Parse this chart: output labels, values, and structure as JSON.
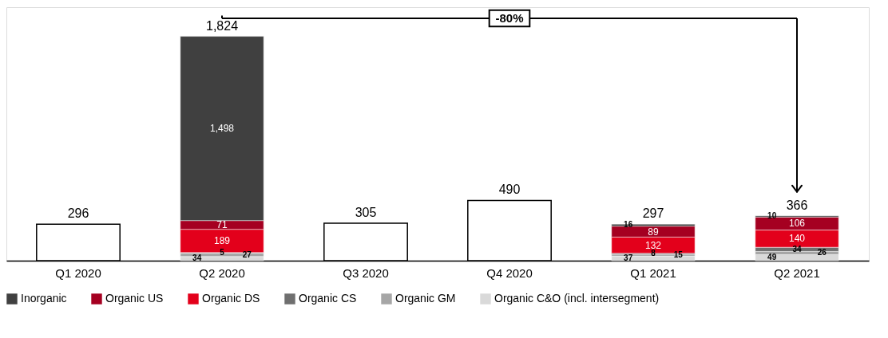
{
  "chart_data": {
    "type": "bar",
    "stacked": true,
    "categories": [
      "Q1 2020",
      "Q2 2020",
      "Q3 2020",
      "Q4 2020",
      "Q1 2021",
      "Q2 2021"
    ],
    "series": [
      {
        "name": "Organic C&O (incl. intersegment)",
        "color": "#d9d9d9",
        "values": [
          null,
          34,
          null,
          null,
          37,
          49
        ],
        "value_labels": [
          null,
          "34",
          null,
          null,
          "37",
          "49"
        ]
      },
      {
        "name": "Organic GM",
        "color": "#a6a6a6",
        "values": [
          null,
          27,
          null,
          null,
          15,
          26
        ],
        "value_labels": [
          null,
          "27",
          null,
          null,
          "15",
          "26"
        ]
      },
      {
        "name": "Organic CS",
        "color": "#6f6f6f",
        "values": [
          null,
          5,
          null,
          null,
          8,
          34
        ],
        "value_labels": [
          null,
          "5",
          null,
          null,
          "8",
          "34"
        ]
      },
      {
        "name": "Organic DS",
        "color": "#e3001b",
        "values": [
          null,
          189,
          null,
          null,
          132,
          140
        ],
        "value_labels": [
          null,
          "189",
          null,
          null,
          "132",
          "140"
        ]
      },
      {
        "name": "Organic US",
        "color": "#a50021",
        "values": [
          null,
          71,
          null,
          null,
          89,
          106
        ],
        "value_labels": [
          null,
          "71",
          null,
          null,
          "89",
          "106"
        ]
      },
      {
        "name": "Inorganic",
        "color": "#404040",
        "values": [
          null,
          1498,
          null,
          null,
          16,
          10
        ],
        "value_labels": [
          null,
          "1,498",
          null,
          null,
          "16",
          "10"
        ]
      },
      {
        "color": "#ffffff",
        "values": [
          296,
          null,
          305,
          490,
          null,
          null
        ],
        "value_labels": [
          "296",
          null,
          "305",
          "490",
          null,
          null
        ]
      }
    ],
    "totals": [
      null,
      "1,824",
      null,
      null,
      "297",
      "366"
    ],
    "legend": "bottom",
    "annotations": [
      "-80%"
    ]
  }
}
